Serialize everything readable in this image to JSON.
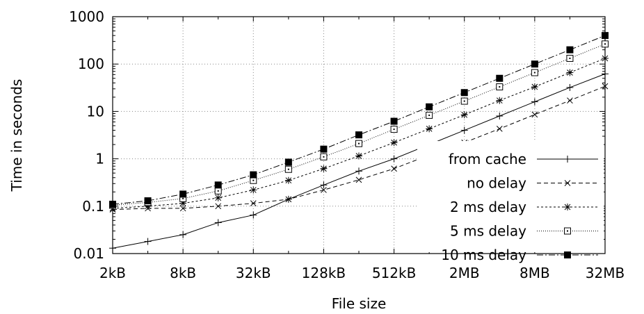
{
  "chart_data": {
    "type": "line",
    "title": "",
    "xlabel": "File size",
    "ylabel": "Time in seconds",
    "x_scale": "log2",
    "y_scale": "log10",
    "x_ticks": [
      "2kB",
      "8kB",
      "32kB",
      "128kB",
      "512kB",
      "2MB",
      "8MB",
      "32MB"
    ],
    "y_ticks": [
      "0.01",
      "0.1",
      "1",
      "10",
      "100",
      "1000"
    ],
    "x_points": [
      "2kB",
      "4kB",
      "8kB",
      "16kB",
      "32kB",
      "64kB",
      "128kB",
      "256kB",
      "512kB",
      "1MB",
      "2MB",
      "4MB",
      "8MB",
      "16MB",
      "32MB"
    ],
    "ylim": [
      0.01,
      1000
    ],
    "grid": true,
    "legend_position": "right",
    "series": [
      {
        "name": "from cache",
        "marker": "plus",
        "dash": "solid",
        "values": [
          0.013,
          0.018,
          0.025,
          0.045,
          0.065,
          0.14,
          0.28,
          0.55,
          1.0,
          2.0,
          4.0,
          8.0,
          16.0,
          32.0,
          62.0
        ]
      },
      {
        "name": "no delay",
        "marker": "cross",
        "dash": "dashed",
        "values": [
          0.085,
          0.09,
          0.09,
          0.1,
          0.115,
          0.14,
          0.22,
          0.36,
          0.62,
          1.2,
          2.2,
          4.3,
          8.6,
          17.0,
          34.0
        ]
      },
      {
        "name": "2 ms delay",
        "marker": "star",
        "dash": "dotted",
        "values": [
          0.09,
          0.1,
          0.115,
          0.15,
          0.22,
          0.35,
          0.62,
          1.15,
          2.2,
          4.3,
          8.5,
          17.0,
          33.0,
          66.0,
          132.0
        ]
      },
      {
        "name": "5 ms delay",
        "marker": "open-square",
        "dash": "fine-dotted",
        "values": [
          0.105,
          0.12,
          0.145,
          0.21,
          0.35,
          0.6,
          1.1,
          2.1,
          4.2,
          8.3,
          16.5,
          33.0,
          66.0,
          132.0,
          265.0
        ]
      },
      {
        "name": "10 ms delay",
        "marker": "filled-square",
        "dash": "dash-dot",
        "values": [
          0.11,
          0.13,
          0.18,
          0.28,
          0.46,
          0.85,
          1.6,
          3.2,
          6.2,
          12.5,
          25.0,
          50.0,
          100.0,
          200.0,
          400.0
        ]
      }
    ]
  }
}
